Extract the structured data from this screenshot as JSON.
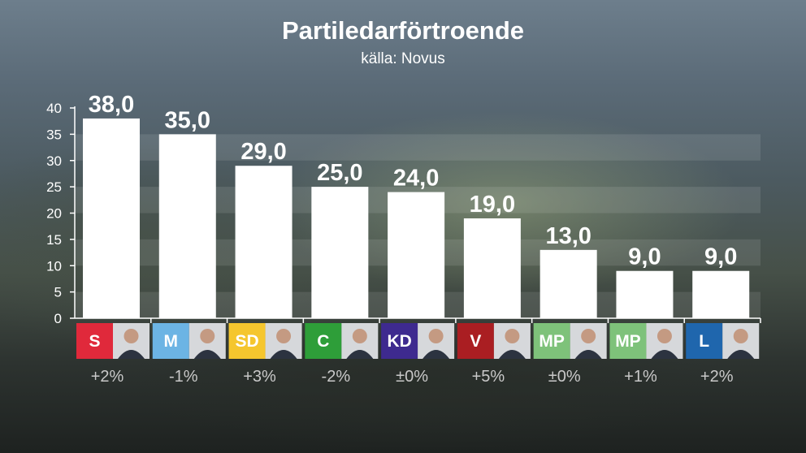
{
  "chart_data": {
    "type": "bar",
    "title": "Partiledarförtroende",
    "subtitle": "källa: Novus",
    "ylim": [
      0,
      40
    ],
    "yticks": [
      0,
      5,
      10,
      15,
      20,
      25,
      30,
      35,
      40
    ],
    "categories": [
      "S",
      "M",
      "SD",
      "C",
      "KD",
      "V",
      "MP",
      "MP",
      "L"
    ],
    "values": [
      38.0,
      35.0,
      29.0,
      25.0,
      24.0,
      19.0,
      13.0,
      9.0,
      9.0
    ],
    "value_labels": [
      "38,0",
      "35,0",
      "29,0",
      "25,0",
      "24,0",
      "19,0",
      "13,0",
      "9,0",
      "9,0"
    ],
    "changes": [
      "+2%",
      "-1%",
      "+3%",
      "-2%",
      "±0%",
      "+5%",
      "±0%",
      "+1%",
      "+2%"
    ],
    "party_colors": [
      "#e0293b",
      "#6cb4e4",
      "#f5c62e",
      "#2e9e39",
      "#3e2a8f",
      "#aa1e22",
      "#7ec27a",
      "#7ec27a",
      "#1f66ad"
    ],
    "grid": true,
    "legend": "none"
  }
}
